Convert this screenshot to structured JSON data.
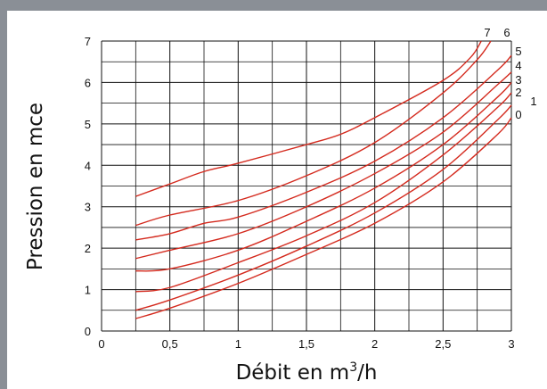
{
  "colors": {
    "frame": "#8a8f96",
    "background": "#ffffff",
    "grid": "#111111",
    "series": "#d42a1e"
  },
  "chart_data": {
    "type": "line",
    "title": "",
    "xlabel": "Débit en m",
    "xlabel_sup": "3",
    "xlabel_suffix": "/h",
    "ylabel": "Pression en mce",
    "xlim": [
      0,
      3
    ],
    "ylim": [
      0,
      7
    ],
    "xticks": [
      0,
      0.5,
      1,
      1.5,
      2,
      2.5,
      3
    ],
    "xtick_labels": [
      "0",
      "0,5",
      "1",
      "1,5",
      "2",
      "2,5",
      "3"
    ],
    "yticks": [
      0,
      1,
      2,
      3,
      4,
      5,
      6,
      7
    ],
    "ytick_labels": [
      "0",
      "1",
      "2",
      "3",
      "4",
      "5",
      "6",
      "7"
    ],
    "grid": true,
    "series": [
      {
        "name": "0",
        "x": [
          0.25,
          0.5,
          1.0,
          1.5,
          2.0,
          2.5,
          2.9,
          3.0
        ],
        "y": [
          0.3,
          0.55,
          1.15,
          1.85,
          2.6,
          3.6,
          4.75,
          5.15
        ]
      },
      {
        "name": "1",
        "x": [
          0.25,
          0.5,
          1.0,
          1.5,
          2.0,
          2.5,
          2.9,
          3.0
        ],
        "y": [
          0.5,
          0.75,
          1.35,
          2.05,
          2.85,
          3.9,
          5.1,
          5.45
        ]
      },
      {
        "name": "2",
        "x": [
          0.25,
          0.5,
          1.0,
          1.5,
          2.0,
          2.5,
          2.9,
          3.0
        ],
        "y": [
          0.95,
          1.05,
          1.65,
          2.3,
          3.1,
          4.25,
          5.4,
          5.75
        ]
      },
      {
        "name": "3",
        "x": [
          0.25,
          0.5,
          1.0,
          1.5,
          2.0,
          2.5,
          2.9,
          3.0
        ],
        "y": [
          1.45,
          1.5,
          1.95,
          2.65,
          3.45,
          4.5,
          5.65,
          6.0
        ]
      },
      {
        "name": "4",
        "x": [
          0.25,
          0.5,
          1.0,
          1.5,
          2.0,
          2.5,
          2.9,
          3.0
        ],
        "y": [
          1.75,
          1.95,
          2.35,
          3.0,
          3.8,
          4.8,
          5.95,
          6.25
        ]
      },
      {
        "name": "5",
        "x": [
          0.25,
          0.5,
          0.75,
          1.0,
          1.5,
          2.0,
          2.5,
          2.9,
          3.0
        ],
        "y": [
          2.2,
          2.35,
          2.6,
          2.75,
          3.35,
          4.1,
          5.15,
          6.3,
          6.65
        ]
      },
      {
        "name": "6",
        "x": [
          0.25,
          0.5,
          1.0,
          1.5,
          2.0,
          2.5,
          2.75,
          2.85
        ],
        "y": [
          2.55,
          2.8,
          3.15,
          3.75,
          4.55,
          5.75,
          6.55,
          7.0
        ]
      },
      {
        "name": "7",
        "x": [
          0.25,
          0.5,
          0.75,
          1.0,
          1.5,
          1.75,
          2.0,
          2.5,
          2.7,
          2.78
        ],
        "y": [
          3.25,
          3.55,
          3.85,
          4.05,
          4.5,
          4.75,
          5.15,
          6.05,
          6.6,
          7.0
        ]
      }
    ]
  }
}
